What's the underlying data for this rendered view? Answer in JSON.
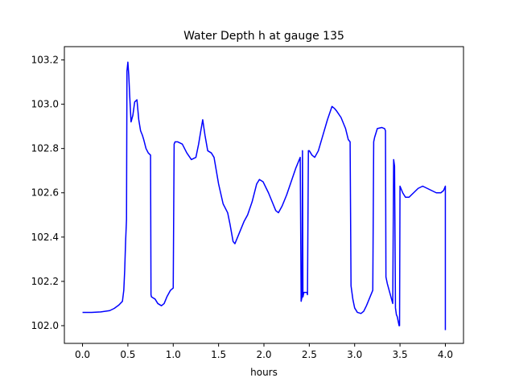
{
  "chart_data": {
    "type": "line",
    "title": "Water Depth h at gauge 135",
    "xlabel": "hours",
    "ylabel": "",
    "xlim": [
      -0.2,
      4.2
    ],
    "ylim": [
      101.92,
      103.26
    ],
    "xticks": [
      0.0,
      0.5,
      1.0,
      1.5,
      2.0,
      2.5,
      3.0,
      3.5,
      4.0
    ],
    "xtick_labels": [
      "0.0",
      "0.5",
      "1.0",
      "1.5",
      "2.0",
      "2.5",
      "3.0",
      "3.5",
      "4.0"
    ],
    "yticks": [
      102.0,
      102.2,
      102.4,
      102.6,
      102.8,
      103.0,
      103.2
    ],
    "ytick_labels": [
      "102.0",
      "102.2",
      "102.4",
      "102.6",
      "102.8",
      "103.0",
      "103.2"
    ],
    "grid": false,
    "series": [
      {
        "color": "#0000ff",
        "x": [
          0.0,
          0.1,
          0.2,
          0.3,
          0.35,
          0.4,
          0.44,
          0.455,
          0.465,
          0.475,
          0.485,
          0.49,
          0.495,
          0.5,
          0.51,
          0.52,
          0.535,
          0.555,
          0.575,
          0.6,
          0.62,
          0.64,
          0.66,
          0.675,
          0.7,
          0.725,
          0.75,
          0.755,
          0.76,
          0.8,
          0.83,
          0.87,
          0.9,
          0.93,
          0.97,
          1.0,
          1.01,
          1.02,
          1.05,
          1.1,
          1.15,
          1.2,
          1.25,
          1.28,
          1.3,
          1.325,
          1.35,
          1.38,
          1.42,
          1.45,
          1.5,
          1.55,
          1.6,
          1.625,
          1.66,
          1.68,
          1.72,
          1.78,
          1.82,
          1.87,
          1.92,
          1.95,
          1.99,
          2.05,
          2.1,
          2.13,
          2.16,
          2.2,
          2.25,
          2.3,
          2.35,
          2.39,
          2.4,
          2.41,
          2.42,
          2.425,
          2.43,
          2.435,
          2.44,
          2.46,
          2.475,
          2.48,
          2.49,
          2.5,
          2.53,
          2.56,
          2.6,
          2.65,
          2.7,
          2.75,
          2.78,
          2.8,
          2.85,
          2.9,
          2.93,
          2.95,
          2.96,
          2.98,
          3.0,
          3.03,
          3.07,
          3.1,
          3.13,
          3.16,
          3.2,
          3.21,
          3.22,
          3.25,
          3.3,
          3.33,
          3.34,
          3.345,
          3.36,
          3.4,
          3.42,
          3.43,
          3.44,
          3.45,
          3.46,
          3.47,
          3.48,
          3.485,
          3.49,
          3.495,
          3.5,
          3.51,
          3.53,
          3.56,
          3.6,
          3.65,
          3.7,
          3.75,
          3.8,
          3.85,
          3.9,
          3.95,
          3.98,
          3.99,
          4.0,
          4.0
        ],
        "y": [
          102.06,
          102.06,
          102.062,
          102.068,
          102.078,
          102.093,
          102.11,
          102.16,
          102.25,
          102.38,
          102.48,
          103.15,
          103.17,
          103.19,
          103.13,
          103.04,
          102.92,
          102.95,
          103.01,
          103.02,
          102.93,
          102.88,
          102.86,
          102.84,
          102.8,
          102.78,
          102.77,
          102.14,
          102.13,
          102.12,
          102.1,
          102.09,
          102.1,
          102.13,
          102.16,
          102.17,
          102.82,
          102.83,
          102.83,
          102.82,
          102.78,
          102.75,
          102.76,
          102.82,
          102.87,
          102.93,
          102.86,
          102.79,
          102.78,
          102.76,
          102.64,
          102.55,
          102.51,
          102.46,
          102.38,
          102.37,
          102.41,
          102.47,
          102.5,
          102.56,
          102.64,
          102.66,
          102.65,
          102.6,
          102.55,
          102.52,
          102.51,
          102.54,
          102.59,
          102.65,
          102.71,
          102.75,
          102.76,
          102.11,
          102.13,
          102.79,
          102.13,
          102.14,
          102.15,
          102.15,
          102.15,
          102.14,
          102.79,
          102.79,
          102.77,
          102.76,
          102.79,
          102.86,
          102.93,
          102.99,
          102.98,
          102.97,
          102.94,
          102.89,
          102.84,
          102.83,
          102.18,
          102.12,
          102.08,
          102.06,
          102.055,
          102.065,
          102.09,
          102.12,
          102.16,
          102.83,
          102.85,
          102.89,
          102.895,
          102.89,
          102.88,
          102.22,
          102.19,
          102.13,
          102.1,
          102.75,
          102.72,
          102.08,
          102.05,
          102.04,
          102.02,
          102.01,
          102.0,
          102.0,
          102.63,
          102.62,
          102.6,
          102.58,
          102.58,
          102.6,
          102.62,
          102.63,
          102.62,
          102.61,
          102.6,
          102.6,
          102.61,
          102.62,
          102.63,
          101.98
        ]
      }
    ]
  }
}
